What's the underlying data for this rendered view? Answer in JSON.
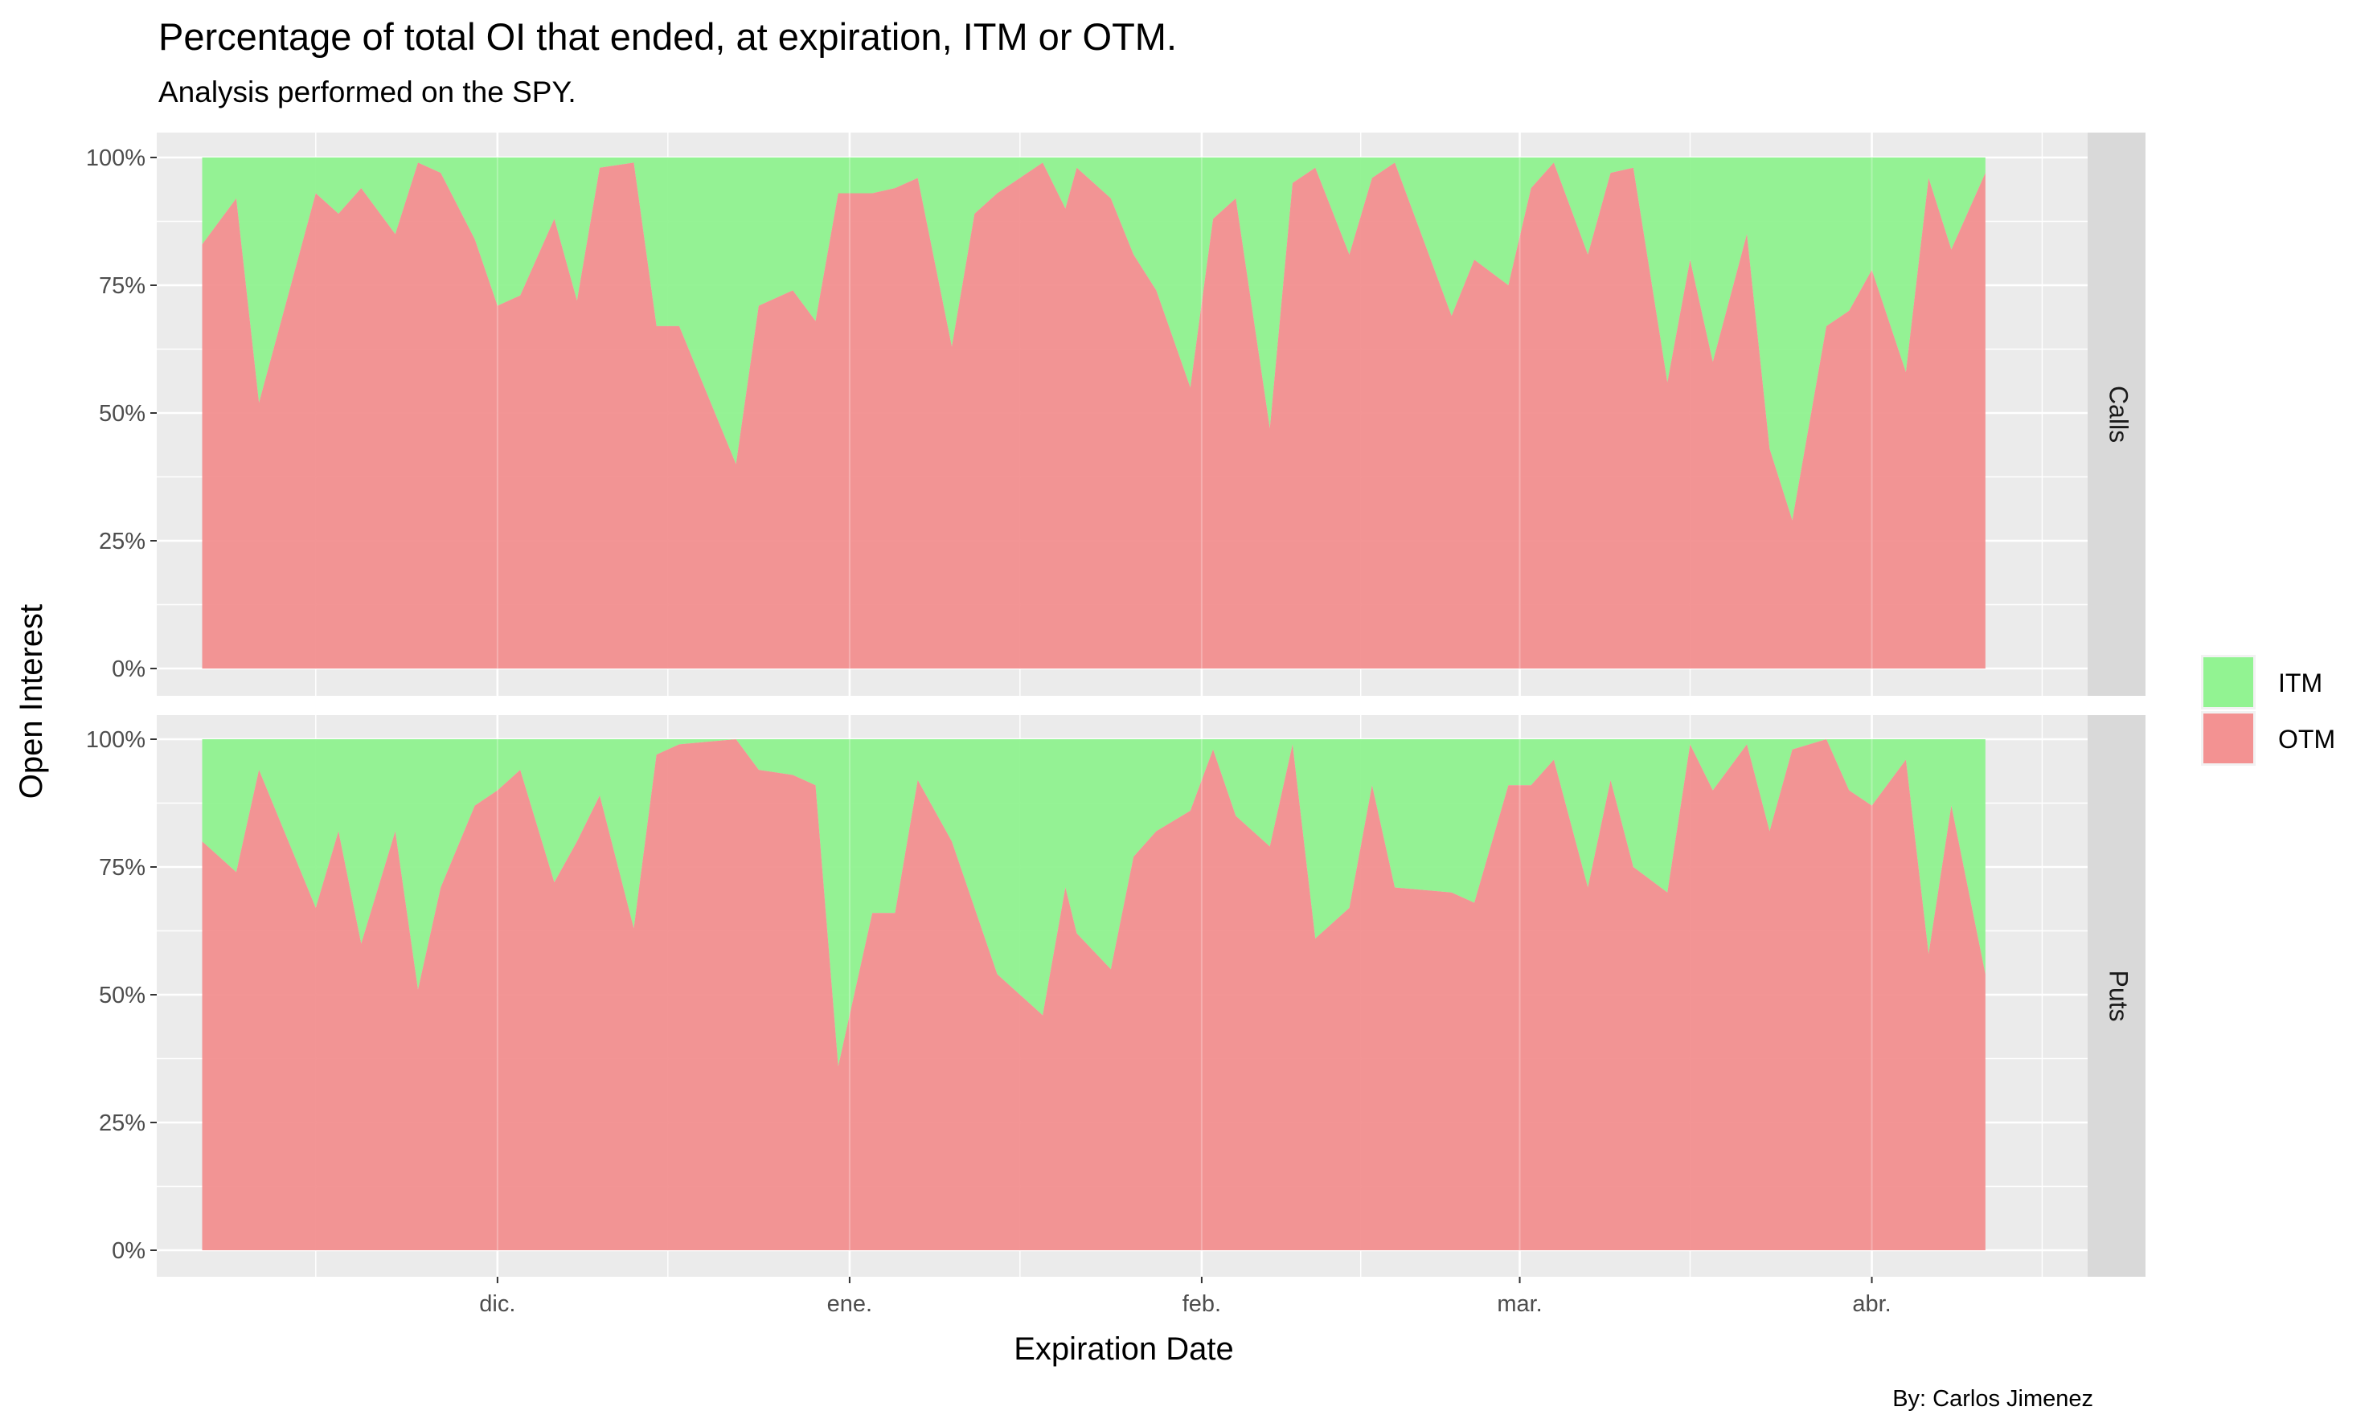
{
  "chart_data": {
    "type": "area",
    "stacked": true,
    "percent": true,
    "title": "Percentage of total OI that ended, at expiration, ITM or OTM.",
    "subtitle": "Analysis performed on the SPY.",
    "xlabel": "Expiration Date",
    "ylabel": "Open Interest",
    "caption": "By: Carlos Jimenez",
    "x_ticks": [
      {
        "label": "dic.",
        "date": "2021-12-01"
      },
      {
        "label": "ene.",
        "date": "2022-01-01"
      },
      {
        "label": "feb.",
        "date": "2022-02-01"
      },
      {
        "label": "mar.",
        "date": "2022-03-01"
      },
      {
        "label": "abr.",
        "date": "2022-04-01"
      }
    ],
    "xlim": [
      "2021-11-01",
      "2022-04-20"
    ],
    "y_ticks": [
      "0%",
      "25%",
      "50%",
      "75%",
      "100%"
    ],
    "ylim": [
      0,
      100
    ],
    "legend": {
      "position": "right",
      "items": [
        {
          "label": "ITM",
          "color": "#8cf28c"
        },
        {
          "label": "OTM",
          "color": "#f28c8c"
        }
      ]
    },
    "colors": {
      "ITM": "#8cf28c",
      "OTM": "#f28c8c",
      "panel_bg": "#ebebeb",
      "strip_bg": "#d9d9d9",
      "grid": "#ffffff"
    },
    "facets": [
      {
        "label": "Calls",
        "otm_points": [
          [
            "2021-11-05",
            83
          ],
          [
            "2021-11-08",
            92
          ],
          [
            "2021-11-10",
            52
          ],
          [
            "2021-11-15",
            93
          ],
          [
            "2021-11-17",
            89
          ],
          [
            "2021-11-19",
            94
          ],
          [
            "2021-11-22",
            85
          ],
          [
            "2021-11-24",
            99
          ],
          [
            "2021-11-26",
            97
          ],
          [
            "2021-11-29",
            84
          ],
          [
            "2021-12-01",
            71
          ],
          [
            "2021-12-03",
            73
          ],
          [
            "2021-12-06",
            88
          ],
          [
            "2021-12-08",
            72
          ],
          [
            "2021-12-10",
            98
          ],
          [
            "2021-12-13",
            99
          ],
          [
            "2021-12-15",
            67
          ],
          [
            "2021-12-17",
            67
          ],
          [
            "2021-12-22",
            40
          ],
          [
            "2021-12-24",
            71
          ],
          [
            "2021-12-27",
            74
          ],
          [
            "2021-12-29",
            68
          ],
          [
            "2021-12-31",
            93
          ],
          [
            "2022-01-03",
            93
          ],
          [
            "2022-01-05",
            94
          ],
          [
            "2022-01-07",
            96
          ],
          [
            "2022-01-10",
            63
          ],
          [
            "2022-01-12",
            89
          ],
          [
            "2022-01-14",
            93
          ],
          [
            "2022-01-18",
            99
          ],
          [
            "2022-01-20",
            90
          ],
          [
            "2022-01-21",
            98
          ],
          [
            "2022-01-24",
            92
          ],
          [
            "2022-01-26",
            81
          ],
          [
            "2022-01-28",
            74
          ],
          [
            "2022-01-31",
            55
          ],
          [
            "2022-02-02",
            88
          ],
          [
            "2022-02-04",
            92
          ],
          [
            "2022-02-07",
            47
          ],
          [
            "2022-02-09",
            95
          ],
          [
            "2022-02-11",
            98
          ],
          [
            "2022-02-14",
            81
          ],
          [
            "2022-02-16",
            96
          ],
          [
            "2022-02-18",
            99
          ],
          [
            "2022-02-23",
            69
          ],
          [
            "2022-02-25",
            80
          ],
          [
            "2022-02-28",
            75
          ],
          [
            "2022-03-02",
            94
          ],
          [
            "2022-03-04",
            99
          ],
          [
            "2022-03-07",
            81
          ],
          [
            "2022-03-09",
            97
          ],
          [
            "2022-03-11",
            98
          ],
          [
            "2022-03-14",
            56
          ],
          [
            "2022-03-16",
            80
          ],
          [
            "2022-03-18",
            60
          ],
          [
            "2022-03-21",
            85
          ],
          [
            "2022-03-23",
            43
          ],
          [
            "2022-03-25",
            29
          ],
          [
            "2022-03-28",
            67
          ],
          [
            "2022-03-30",
            70
          ],
          [
            "2022-04-01",
            78
          ],
          [
            "2022-04-04",
            58
          ],
          [
            "2022-04-06",
            96
          ],
          [
            "2022-04-08",
            82
          ],
          [
            "2022-04-11",
            97
          ]
        ]
      },
      {
        "label": "Puts",
        "otm_points": [
          [
            "2021-11-05",
            80
          ],
          [
            "2021-11-08",
            74
          ],
          [
            "2021-11-10",
            94
          ],
          [
            "2021-11-15",
            67
          ],
          [
            "2021-11-17",
            82
          ],
          [
            "2021-11-19",
            60
          ],
          [
            "2021-11-22",
            82
          ],
          [
            "2021-11-24",
            51
          ],
          [
            "2021-11-26",
            71
          ],
          [
            "2021-11-29",
            87
          ],
          [
            "2021-12-01",
            90
          ],
          [
            "2021-12-03",
            94
          ],
          [
            "2021-12-06",
            72
          ],
          [
            "2021-12-08",
            80
          ],
          [
            "2021-12-10",
            89
          ],
          [
            "2021-12-13",
            63
          ],
          [
            "2021-12-15",
            97
          ],
          [
            "2021-12-17",
            99
          ],
          [
            "2021-12-22",
            100
          ],
          [
            "2021-12-24",
            94
          ],
          [
            "2021-12-27",
            93
          ],
          [
            "2021-12-29",
            91
          ],
          [
            "2021-12-31",
            36
          ],
          [
            "2022-01-03",
            66
          ],
          [
            "2022-01-05",
            66
          ],
          [
            "2022-01-07",
            92
          ],
          [
            "2022-01-10",
            80
          ],
          [
            "2022-01-12",
            67
          ],
          [
            "2022-01-14",
            54
          ],
          [
            "2022-01-18",
            46
          ],
          [
            "2022-01-20",
            71
          ],
          [
            "2022-01-21",
            62
          ],
          [
            "2022-01-24",
            55
          ],
          [
            "2022-01-26",
            77
          ],
          [
            "2022-01-28",
            82
          ],
          [
            "2022-01-31",
            86
          ],
          [
            "2022-02-02",
            98
          ],
          [
            "2022-02-04",
            85
          ],
          [
            "2022-02-07",
            79
          ],
          [
            "2022-02-09",
            99
          ],
          [
            "2022-02-11",
            61
          ],
          [
            "2022-02-14",
            67
          ],
          [
            "2022-02-16",
            91
          ],
          [
            "2022-02-18",
            71
          ],
          [
            "2022-02-23",
            70
          ],
          [
            "2022-02-25",
            68
          ],
          [
            "2022-02-28",
            91
          ],
          [
            "2022-03-02",
            91
          ],
          [
            "2022-03-04",
            96
          ],
          [
            "2022-03-07",
            71
          ],
          [
            "2022-03-09",
            92
          ],
          [
            "2022-03-11",
            75
          ],
          [
            "2022-03-14",
            70
          ],
          [
            "2022-03-16",
            99
          ],
          [
            "2022-03-18",
            90
          ],
          [
            "2022-03-21",
            99
          ],
          [
            "2022-03-23",
            82
          ],
          [
            "2022-03-25",
            98
          ],
          [
            "2022-03-28",
            100
          ],
          [
            "2022-03-30",
            90
          ],
          [
            "2022-04-01",
            87
          ],
          [
            "2022-04-04",
            96
          ],
          [
            "2022-04-06",
            58
          ],
          [
            "2022-04-08",
            87
          ],
          [
            "2022-04-11",
            54
          ]
        ]
      }
    ]
  }
}
